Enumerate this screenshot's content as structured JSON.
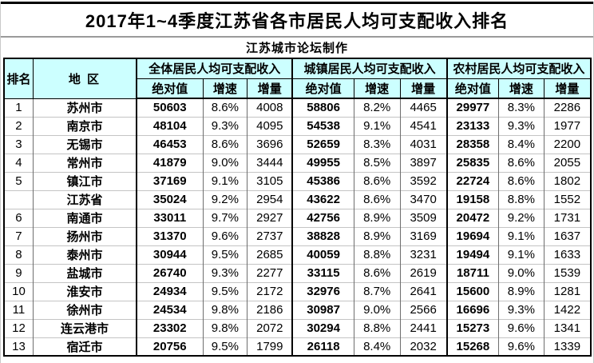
{
  "page": {
    "title": "2017年1~4季度江苏省各市居民人均可支配收入排名",
    "credit": "江苏城市论坛制作"
  },
  "colors": {
    "header_bg": "#ccffff",
    "label_bg": "#ffff99",
    "border": "#000000",
    "row_divider": "#c4c4c4"
  },
  "chart_data": {
    "type": "table",
    "title": "2017年1~4季度江苏省各市居民人均可支配收入排名",
    "subtitle": "江苏城市论坛制作",
    "header": {
      "rank": "排名",
      "region": "地 区",
      "groups": [
        "全体居民人均可支配收入",
        "城镇居民人均可支配收入",
        "农村居民人均可支配收入"
      ],
      "sub_columns": [
        "绝对值",
        "增速",
        "增量"
      ]
    },
    "rows": [
      [
        "1",
        "苏州市",
        "50603",
        "8.6%",
        "4008",
        "58806",
        "8.2%",
        "4465",
        "29977",
        "8.3%",
        "2286"
      ],
      [
        "2",
        "南京市",
        "48104",
        "9.3%",
        "4095",
        "54538",
        "9.1%",
        "4541",
        "23133",
        "9.3%",
        "1977"
      ],
      [
        "3",
        "无锡市",
        "46453",
        "8.6%",
        "3696",
        "52659",
        "8.3%",
        "4031",
        "28358",
        "8.4%",
        "2200"
      ],
      [
        "4",
        "常州市",
        "41879",
        "9.0%",
        "3444",
        "49955",
        "8.5%",
        "3897",
        "25835",
        "8.6%",
        "2055"
      ],
      [
        "5",
        "镇江市",
        "37169",
        "9.1%",
        "3105",
        "45386",
        "8.6%",
        "3592",
        "22724",
        "8.6%",
        "1802"
      ],
      [
        "",
        "江苏省",
        "35024",
        "9.2%",
        "2954",
        "43622",
        "8.6%",
        "3470",
        "19158",
        "8.8%",
        "1552"
      ],
      [
        "6",
        "南通市",
        "33011",
        "9.7%",
        "2927",
        "42756",
        "8.9%",
        "3509",
        "20472",
        "9.2%",
        "1731"
      ],
      [
        "7",
        "扬州市",
        "31370",
        "9.6%",
        "2737",
        "38828",
        "8.9%",
        "3169",
        "19694",
        "9.1%",
        "1637"
      ],
      [
        "8",
        "泰州市",
        "30944",
        "9.5%",
        "2685",
        "40059",
        "8.8%",
        "3231",
        "19494",
        "9.1%",
        "1633"
      ],
      [
        "9",
        "盐城市",
        "26740",
        "9.3%",
        "2277",
        "33115",
        "8.6%",
        "2619",
        "18711",
        "9.0%",
        "1539"
      ],
      [
        "10",
        "淮安市",
        "24934",
        "9.5%",
        "2172",
        "32976",
        "8.7%",
        "2641",
        "15600",
        "8.9%",
        "1281"
      ],
      [
        "11",
        "徐州市",
        "24534",
        "9.8%",
        "2186",
        "30987",
        "9.0%",
        "2566",
        "16696",
        "9.3%",
        "1422"
      ],
      [
        "12",
        "连云港市",
        "23302",
        "9.8%",
        "2072",
        "30294",
        "8.8%",
        "2441",
        "15273",
        "9.6%",
        "1341"
      ],
      [
        "13",
        "宿迁市",
        "20756",
        "9.5%",
        "1799",
        "26118",
        "8.4%",
        "2032",
        "15268",
        "9.6%",
        "1339"
      ]
    ]
  }
}
